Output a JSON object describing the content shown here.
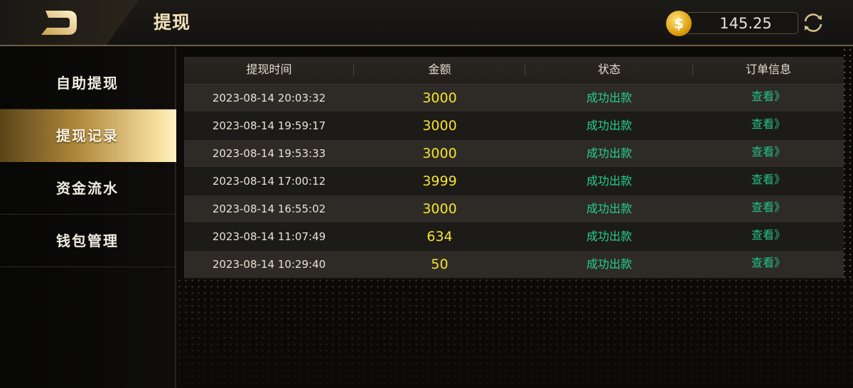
{
  "header": {
    "title": "提现",
    "balance": "145.25",
    "coin_symbol": "$",
    "back_icon": "back-d-icon",
    "refresh_icon": "refresh-icon"
  },
  "sidebar": {
    "items": [
      {
        "label": "自助提现"
      },
      {
        "label": "提现记录",
        "active": true
      },
      {
        "label": "资金流水"
      },
      {
        "label": "钱包管理"
      }
    ]
  },
  "table": {
    "columns": [
      "提现时间",
      "金额",
      "状态",
      "订单信息"
    ],
    "rows": [
      {
        "time": "2023-08-14  20:03:32",
        "amount": "3000",
        "status": "成功出款",
        "action": "查看》"
      },
      {
        "time": "2023-08-14  19:59:17",
        "amount": "3000",
        "status": "成功出款",
        "action": "查看》"
      },
      {
        "time": "2023-08-14  19:53:33",
        "amount": "3000",
        "status": "成功出款",
        "action": "查看》"
      },
      {
        "time": "2023-08-14  17:00:12",
        "amount": "3999",
        "status": "成功出款",
        "action": "查看》"
      },
      {
        "time": "2023-08-14  16:55:02",
        "amount": "3000",
        "status": "成功出款",
        "action": "查看》"
      },
      {
        "time": "2023-08-14  11:07:49",
        "amount": "634",
        "status": "成功出款",
        "action": "查看》"
      },
      {
        "time": "2023-08-14  10:29:40",
        "amount": "50",
        "status": "成功出款",
        "action": "查看》"
      }
    ]
  },
  "colors": {
    "accent_gold": "#f3e2b8",
    "amount": "#f5e42a",
    "status": "#25d08b"
  }
}
